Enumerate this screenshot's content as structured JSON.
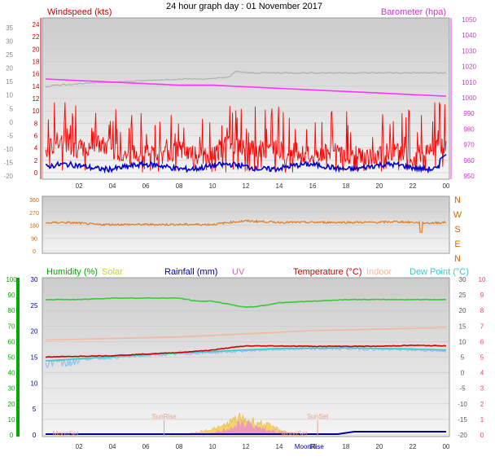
{
  "title": "24 hour graph day : 01 November 2017",
  "x_ticks": [
    "02",
    "04",
    "06",
    "08",
    "10",
    "12",
    "14",
    "16",
    "18",
    "20",
    "22",
    "00"
  ],
  "colors": {
    "windspeed": "#ff0000",
    "gust_avg": "#0000cc",
    "barometer": "#ff33ff",
    "barometer_trace": "#b0b0b0",
    "direction": "#e07b20",
    "humidity": "#33cc33",
    "solar": "#cccc33",
    "rainfall": "#000099",
    "uv": "#cc66cc",
    "temperature": "#cc0000",
    "indoor": "#f2b8a0",
    "dewpoint": "#33cccc",
    "axis_green": "#00aa00",
    "axis_pink": "#ff3388"
  },
  "chart_data": [
    {
      "type": "line",
      "title": "",
      "left_label": "Windspeed (kts)",
      "right_label": "Barometer (hpa)",
      "outer_left_ticks": [
        "35",
        "30",
        "25",
        "20",
        "15",
        "10",
        "5",
        "0",
        "-5",
        "-10",
        "-15",
        "-20"
      ],
      "left_ticks": [
        "24",
        "22",
        "20",
        "18",
        "16",
        "14",
        "12",
        "10",
        "8",
        "6",
        "4",
        "2",
        "0"
      ],
      "right_ticks": [
        "1050",
        "1040",
        "1030",
        "1020",
        "1010",
        "1000",
        "990",
        "980",
        "970",
        "960",
        "950"
      ],
      "ylim": [
        0,
        25
      ],
      "barometer_range": [
        950,
        1050
      ],
      "series": [
        {
          "name": "Windspeed (kts)",
          "x": [
            0,
            1,
            2,
            3,
            4,
            5,
            6,
            7,
            8,
            9,
            10,
            11,
            12,
            13,
            14,
            15,
            16,
            17,
            18,
            19,
            20,
            21,
            22,
            23,
            24
          ],
          "values": [
            4,
            5,
            4,
            5,
            4,
            3,
            4,
            3,
            4,
            3,
            3,
            5,
            4,
            4,
            4,
            3,
            3,
            4,
            3,
            3,
            3,
            4,
            3,
            4,
            5
          ]
        },
        {
          "name": "Barometer (hpa)",
          "x": [
            0,
            2,
            4,
            6,
            8,
            10,
            12,
            14,
            16,
            18,
            20,
            22,
            24
          ],
          "values": [
            1012,
            1011,
            1010,
            1009,
            1008,
            1008,
            1007,
            1006,
            1005,
            1004,
            1003,
            1002,
            1001
          ]
        }
      ]
    },
    {
      "type": "line",
      "title": "",
      "left_ticks": [
        "360",
        "270",
        "180",
        "90",
        "0"
      ],
      "right_ticks": [
        "N",
        "W",
        "S",
        "E",
        "N"
      ],
      "ylim": [
        0,
        360
      ],
      "series": [
        {
          "name": "",
          "x": [
            0,
            1,
            2,
            3,
            4,
            5,
            6,
            7,
            8,
            9,
            10,
            11,
            12,
            13,
            14,
            15,
            16,
            17,
            18,
            19,
            20,
            21,
            22,
            23,
            24
          ],
          "values": [
            195,
            200,
            195,
            185,
            185,
            185,
            185,
            185,
            185,
            185,
            185,
            200,
            210,
            205,
            200,
            200,
            200,
            200,
            200,
            200,
            200,
            205,
            200,
            195,
            200
          ]
        }
      ]
    },
    {
      "type": "line",
      "title": "",
      "legend": [
        "Humidity (%)",
        "Solar",
        "Rainfall (mm)",
        "UV",
        "Temperature (°C)",
        "Indoor",
        "Dew Point (°C)"
      ],
      "annotations": [
        "SunRise",
        "SunSet",
        "MoonSet",
        "MoonRise"
      ],
      "outer_left_ticks": [
        "100",
        "90",
        "80",
        "70",
        "60",
        "50",
        "40",
        "30",
        "20",
        "10",
        "0"
      ],
      "left_ticks": [
        "30",
        "25",
        "20",
        "15",
        "10",
        "5",
        "0"
      ],
      "right_ticks": [
        "30",
        "25",
        "20",
        "15",
        "10",
        "5",
        "0",
        "-5",
        "-10",
        "-15",
        "-20"
      ],
      "outer_right_ticks": [
        "10",
        "9",
        "8",
        "7",
        "6",
        "5",
        "4",
        "3",
        "2",
        "1",
        "0"
      ],
      "temperature_range": [
        -20,
        30
      ],
      "series": [
        {
          "name": "Humidity (%)",
          "x": [
            0,
            2,
            4,
            6,
            8,
            9,
            10,
            11,
            12,
            13,
            14,
            16,
            18,
            20,
            22,
            24
          ],
          "values": [
            87,
            87,
            88,
            88,
            88,
            86,
            86,
            84,
            82,
            83,
            85,
            86,
            87,
            87,
            87,
            87
          ]
        },
        {
          "name": "Temperature (°C)",
          "x": [
            0,
            2,
            4,
            6,
            8,
            10,
            11,
            12,
            14,
            16,
            18,
            20,
            22,
            24
          ],
          "values": [
            5.0,
            5.3,
            5.5,
            6.0,
            6.5,
            7.3,
            8.0,
            8.6,
            8.6,
            8.5,
            8.5,
            8.5,
            8.8,
            8.6
          ]
        },
        {
          "name": "Dew Point (°C)",
          "x": [
            0,
            2,
            4,
            6,
            8,
            10,
            12,
            14,
            16,
            18,
            20,
            22,
            24
          ],
          "values": [
            3.5,
            4.2,
            4.8,
            5.5,
            6.0,
            6.5,
            7.0,
            7.5,
            7.6,
            7.7,
            7.5,
            7.3,
            7.0
          ]
        },
        {
          "name": "Indoor",
          "x": [
            0,
            4,
            8,
            12,
            16,
            20,
            24
          ],
          "values": [
            10.5,
            11.0,
            11.5,
            12.5,
            13.5,
            14.0,
            14.5
          ]
        },
        {
          "name": "Rainfall (mm)",
          "x": [
            0,
            17.5,
            18.5,
            24
          ],
          "values": [
            0,
            0,
            0.5,
            0.5
          ]
        },
        {
          "name": "Solar",
          "x": [
            0,
            7.5,
            8.5,
            9.5,
            10.5,
            11.5,
            12.5,
            13.5,
            14.5,
            15.5,
            24
          ],
          "values": [
            0,
            0,
            0.1,
            0.5,
            0.9,
            2.0,
            1.6,
            1.0,
            0.3,
            0,
            0
          ]
        },
        {
          "name": "UV",
          "x": [
            0,
            8,
            9,
            10,
            11,
            12,
            13,
            14,
            15,
            24
          ],
          "values": [
            0,
            0,
            0,
            0.3,
            1.2,
            2.1,
            1.0,
            0.5,
            0,
            0
          ]
        }
      ]
    }
  ]
}
